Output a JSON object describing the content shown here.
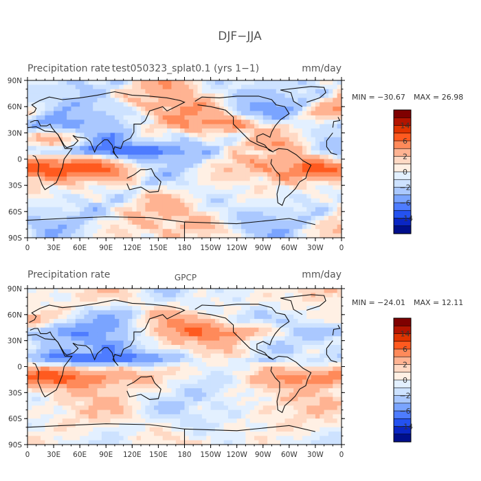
{
  "page_title": "DJF−JJA",
  "chart_data": [
    {
      "type": "heatmap",
      "title_left": "Precipitation rate",
      "title_center": "test050323_splat0.1 (yrs 1−1)",
      "units": "mm/day",
      "min_label": "MIN = −30.67",
      "max_label": "MAX =   26.98",
      "min": -30.67,
      "max": 26.98,
      "x_ticks": [
        "0",
        "30E",
        "60E",
        "90E",
        "120E",
        "150E",
        "180",
        "150W",
        "120W",
        "90W",
        "60W",
        "30W",
        "0"
      ],
      "y_ticks": [
        "90N",
        "60N",
        "30N",
        "0",
        "30S",
        "60S",
        "90S"
      ],
      "colorbar_labels": [
        "14",
        "6",
        "2",
        "0",
        "−2",
        "−6",
        "−14"
      ],
      "colorbar_colors": [
        "#7f0000",
        "#b31400",
        "#e03400",
        "#ff5a1f",
        "#ff8a5a",
        "#ffb392",
        "#ffd9c4",
        "#fff0e4",
        "#e3f0ff",
        "#cde2ff",
        "#aac8ff",
        "#7aa4ff",
        "#4e7cff",
        "#2452f0",
        "#0a26c4",
        "#000f8c"
      ]
    },
    {
      "type": "heatmap",
      "title_left": "Precipitation rate",
      "title_center": "GPCP",
      "units": "mm/day",
      "min_label": "MIN = −24.01",
      "max_label": "MAX =   12.11",
      "min": -24.01,
      "max": 12.11,
      "x_ticks": [
        "0",
        "30E",
        "60E",
        "90E",
        "120E",
        "150E",
        "180",
        "150W",
        "120W",
        "90W",
        "60W",
        "30W",
        "0"
      ],
      "y_ticks": [
        "90N",
        "60N",
        "30N",
        "0",
        "30S",
        "60S",
        "90S"
      ],
      "colorbar_labels": [
        "14",
        "6",
        "2",
        "0",
        "−2",
        "−6",
        "−14"
      ],
      "colorbar_colors": [
        "#7f0000",
        "#b31400",
        "#e03400",
        "#ff5a1f",
        "#ff8a5a",
        "#ffb392",
        "#ffd9c4",
        "#fff0e4",
        "#e3f0ff",
        "#cde2ff",
        "#aac8ff",
        "#7aa4ff",
        "#4e7cff",
        "#2452f0",
        "#0a26c4",
        "#000f8c"
      ]
    }
  ]
}
